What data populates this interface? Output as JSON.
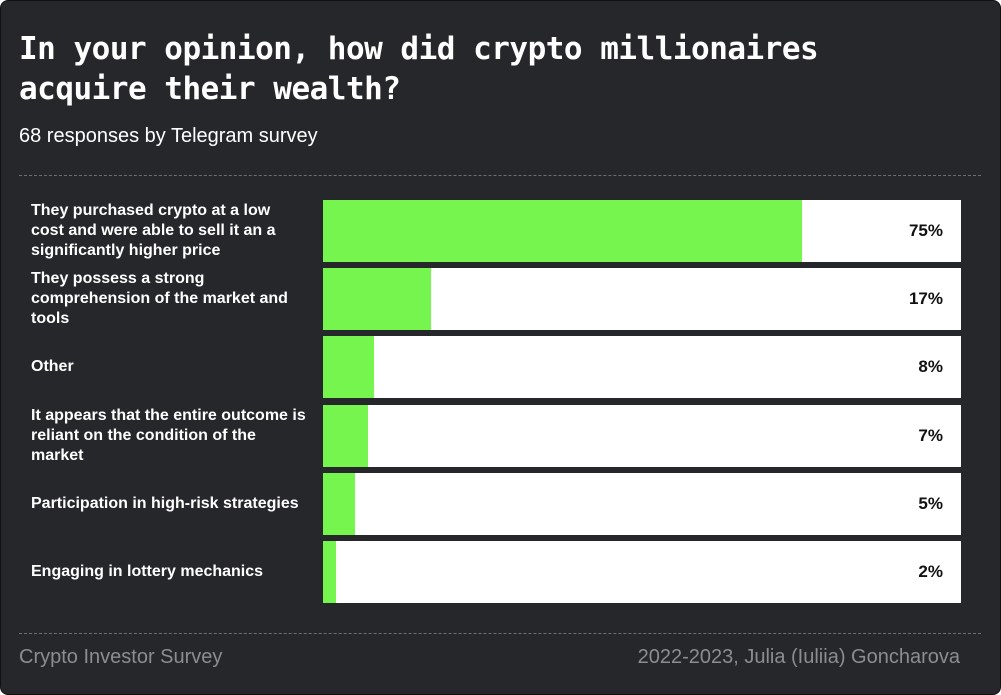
{
  "chart_data": {
    "type": "bar",
    "orientation": "horizontal",
    "title": "In your opinion, how did crypto millionaires acquire their wealth?",
    "subtitle": "68 responses by Telegram survey",
    "categories": [
      "They purchased crypto at a low cost and were able to sell it an a significantly higher price",
      "They possess a strong comprehension of the market and tools",
      "Other",
      "It appears that the entire outcome is reliant on the condition of the market",
      "Participation in high-risk strategies",
      "Engaging in lottery mechanics"
    ],
    "values": [
      75,
      17,
      8,
      7,
      5,
      2
    ],
    "value_labels": [
      "75%",
      "17%",
      "8%",
      "7%",
      "5%",
      "2%"
    ],
    "color": "#76f54e",
    "xlim": [
      0,
      100
    ],
    "footer_left": "Crypto Investor Survey",
    "footer_right": "2022-2023, Julia (Iuliia) Goncharova"
  }
}
